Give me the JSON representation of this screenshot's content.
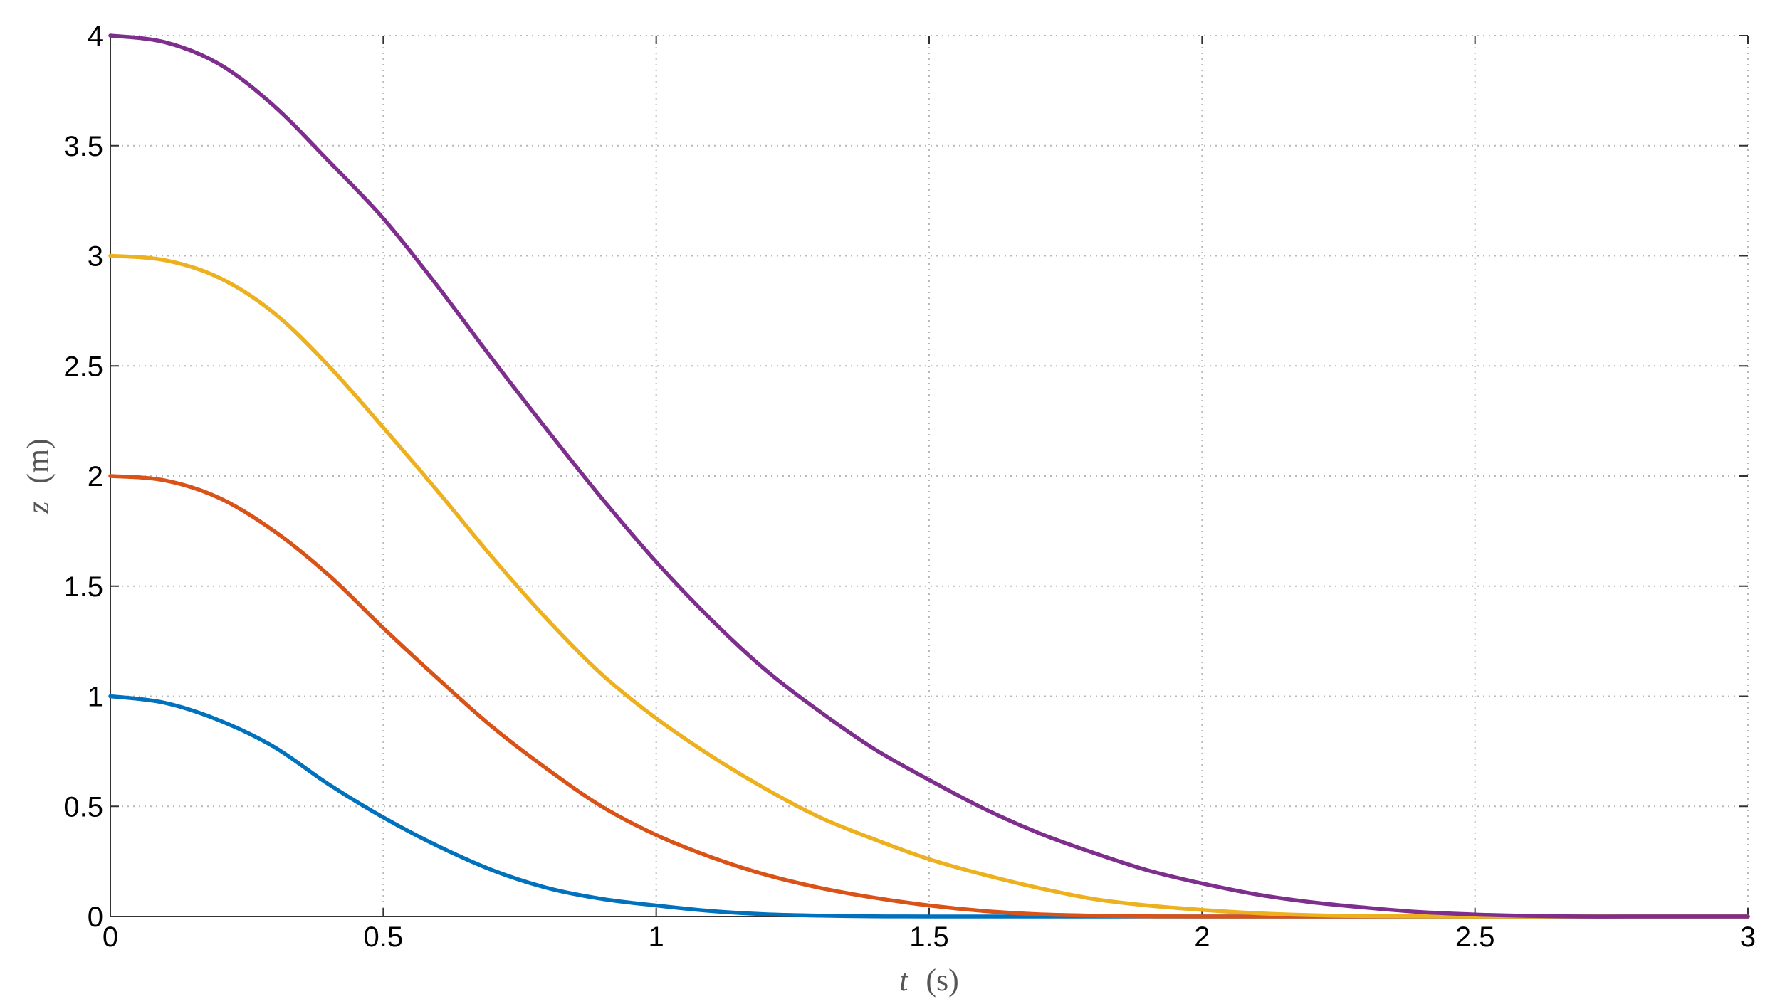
{
  "chart_data": {
    "type": "line",
    "title": "",
    "xlabel": {
      "var": "t",
      "unit": "(s)"
    },
    "ylabel": {
      "var": "z",
      "unit": "(m)"
    },
    "xlim": [
      0,
      3
    ],
    "ylim": [
      0,
      4
    ],
    "grid": true,
    "x_ticks": [
      "0",
      "0.5",
      "1",
      "1.5",
      "2",
      "2.5",
      "3"
    ],
    "y_ticks": [
      "0",
      "0.5",
      "1",
      "1.5",
      "2",
      "2.5",
      "3",
      "3.5",
      "4"
    ],
    "x_tick_values": [
      0,
      0.5,
      1,
      1.5,
      2,
      2.5,
      3
    ],
    "y_tick_values": [
      0,
      0.5,
      1,
      1.5,
      2,
      2.5,
      3,
      3.5,
      4
    ],
    "series": [
      {
        "color": "#0072BD",
        "x": [
          0,
          0.1,
          0.2,
          0.3,
          0.4,
          0.5,
          0.6,
          0.7,
          0.8,
          0.9,
          1.0,
          1.1,
          1.2,
          1.3,
          1.4,
          1.5,
          2.0,
          2.5,
          3.0
        ],
        "y": [
          1.0,
          0.97,
          0.89,
          0.77,
          0.6,
          0.45,
          0.32,
          0.21,
          0.13,
          0.08,
          0.05,
          0.025,
          0.01,
          0.004,
          0.001,
          0.0,
          0.0,
          0.0,
          0.0
        ]
      },
      {
        "color": "#D95319",
        "x": [
          0,
          0.1,
          0.2,
          0.3,
          0.4,
          0.5,
          0.6,
          0.7,
          0.8,
          0.9,
          1.0,
          1.1,
          1.2,
          1.3,
          1.4,
          1.5,
          1.6,
          1.7,
          1.8,
          1.9,
          2.0,
          2.5,
          3.0
        ],
        "y": [
          2.0,
          1.98,
          1.9,
          1.75,
          1.55,
          1.31,
          1.08,
          0.86,
          0.67,
          0.5,
          0.37,
          0.27,
          0.19,
          0.13,
          0.085,
          0.05,
          0.025,
          0.01,
          0.004,
          0.001,
          0.0,
          0.0,
          0.0
        ]
      },
      {
        "color": "#EDB120",
        "x": [
          0,
          0.1,
          0.2,
          0.3,
          0.4,
          0.5,
          0.6,
          0.7,
          0.8,
          0.9,
          1.0,
          1.1,
          1.2,
          1.3,
          1.4,
          1.5,
          1.6,
          1.7,
          1.8,
          1.9,
          2.0,
          2.1,
          2.2,
          2.3,
          2.5,
          3.0
        ],
        "y": [
          3.0,
          2.98,
          2.9,
          2.74,
          2.5,
          2.22,
          1.93,
          1.63,
          1.35,
          1.1,
          0.9,
          0.73,
          0.58,
          0.45,
          0.35,
          0.26,
          0.19,
          0.13,
          0.08,
          0.05,
          0.03,
          0.015,
          0.006,
          0.002,
          0.0,
          0.0
        ]
      },
      {
        "color": "#7E2F8E",
        "x": [
          0,
          0.1,
          0.2,
          0.3,
          0.4,
          0.5,
          0.6,
          0.7,
          0.8,
          0.9,
          1.0,
          1.1,
          1.2,
          1.3,
          1.4,
          1.5,
          1.6,
          1.7,
          1.8,
          1.9,
          2.0,
          2.1,
          2.2,
          2.3,
          2.4,
          2.5,
          2.6,
          2.7,
          2.8,
          3.0
        ],
        "y": [
          4.0,
          3.97,
          3.87,
          3.68,
          3.43,
          3.17,
          2.86,
          2.53,
          2.21,
          1.9,
          1.61,
          1.35,
          1.12,
          0.93,
          0.76,
          0.62,
          0.49,
          0.38,
          0.29,
          0.21,
          0.15,
          0.1,
          0.065,
          0.04,
          0.02,
          0.009,
          0.003,
          0.0,
          0.0,
          0.0
        ]
      }
    ]
  }
}
